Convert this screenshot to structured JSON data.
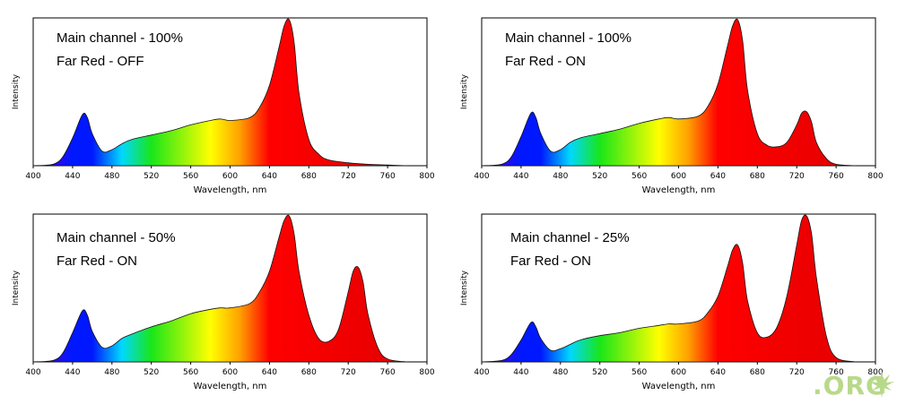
{
  "chart_data": [
    {
      "type": "area",
      "annotations": [
        "Main channel - 100%",
        "Far Red - OFF"
      ],
      "xlabel": "Wavelength, nm",
      "ylabel": "Intensity",
      "xlim": [
        400,
        800
      ],
      "xticks": [
        400,
        440,
        480,
        520,
        560,
        600,
        640,
        680,
        720,
        760,
        800
      ],
      "ylim": [
        0,
        1
      ],
      "grid": false,
      "x": [
        400,
        420,
        430,
        440,
        450,
        455,
        460,
        470,
        480,
        490,
        500,
        520,
        540,
        560,
        580,
        590,
        600,
        620,
        630,
        640,
        650,
        655,
        660,
        665,
        670,
        680,
        690,
        700,
        720,
        740,
        760,
        780
      ],
      "values": [
        0,
        0.01,
        0.06,
        0.19,
        0.35,
        0.33,
        0.22,
        0.1,
        0.11,
        0.15,
        0.18,
        0.21,
        0.24,
        0.28,
        0.31,
        0.32,
        0.31,
        0.33,
        0.4,
        0.55,
        0.82,
        0.96,
        1.0,
        0.85,
        0.5,
        0.18,
        0.08,
        0.04,
        0.02,
        0.01,
        0.005,
        0
      ]
    },
    {
      "type": "area",
      "annotations": [
        "Main channel - 100%",
        "Far Red - ON"
      ],
      "xlabel": "Wavelength, nm",
      "ylabel": "Intensity",
      "xlim": [
        400,
        800
      ],
      "xticks": [
        400,
        440,
        480,
        520,
        560,
        600,
        640,
        680,
        720,
        760,
        800
      ],
      "ylim": [
        0,
        1
      ],
      "grid": false,
      "x": [
        400,
        420,
        430,
        440,
        450,
        455,
        460,
        470,
        480,
        490,
        500,
        520,
        540,
        560,
        580,
        590,
        600,
        620,
        630,
        640,
        650,
        655,
        660,
        665,
        670,
        680,
        690,
        700,
        710,
        720,
        725,
        730,
        735,
        740,
        750,
        760,
        780
      ],
      "values": [
        0,
        0.01,
        0.06,
        0.2,
        0.36,
        0.33,
        0.22,
        0.1,
        0.11,
        0.16,
        0.19,
        0.22,
        0.25,
        0.29,
        0.32,
        0.33,
        0.32,
        0.34,
        0.41,
        0.56,
        0.83,
        0.96,
        1.0,
        0.86,
        0.52,
        0.22,
        0.14,
        0.13,
        0.16,
        0.28,
        0.36,
        0.37,
        0.3,
        0.16,
        0.05,
        0.01,
        0
      ]
    },
    {
      "type": "area",
      "annotations": [
        "Main channel - 50%",
        "Far Red - ON"
      ],
      "xlabel": "Wavelength, nm",
      "ylabel": "Intensity",
      "xlim": [
        400,
        800
      ],
      "xticks": [
        400,
        440,
        480,
        520,
        560,
        600,
        640,
        680,
        720,
        760,
        800
      ],
      "ylim": [
        0,
        1
      ],
      "grid": false,
      "x": [
        400,
        420,
        430,
        440,
        450,
        455,
        460,
        470,
        480,
        490,
        500,
        520,
        540,
        560,
        580,
        590,
        600,
        620,
        630,
        640,
        650,
        655,
        660,
        665,
        670,
        680,
        690,
        700,
        710,
        720,
        725,
        730,
        735,
        740,
        750,
        760,
        780
      ],
      "values": [
        0,
        0.01,
        0.06,
        0.2,
        0.35,
        0.32,
        0.21,
        0.1,
        0.11,
        0.16,
        0.19,
        0.24,
        0.28,
        0.33,
        0.36,
        0.37,
        0.37,
        0.4,
        0.48,
        0.62,
        0.86,
        0.97,
        1.0,
        0.88,
        0.62,
        0.32,
        0.16,
        0.14,
        0.22,
        0.48,
        0.62,
        0.65,
        0.55,
        0.33,
        0.1,
        0.02,
        0
      ]
    },
    {
      "type": "area",
      "annotations": [
        "Main channel - 25%",
        "Far Red - ON"
      ],
      "xlabel": "Wavelength, nm",
      "ylabel": "Intensity",
      "xlim": [
        400,
        800
      ],
      "xticks": [
        400,
        440,
        480,
        520,
        560,
        600,
        640,
        680,
        720,
        760,
        800
      ],
      "ylim": [
        0,
        1
      ],
      "grid": false,
      "x": [
        400,
        420,
        430,
        440,
        450,
        455,
        460,
        470,
        480,
        490,
        500,
        520,
        540,
        560,
        580,
        590,
        600,
        620,
        630,
        640,
        650,
        655,
        660,
        665,
        670,
        680,
        690,
        700,
        710,
        720,
        725,
        730,
        735,
        740,
        750,
        760,
        780
      ],
      "values": [
        0,
        0.01,
        0.05,
        0.15,
        0.27,
        0.24,
        0.16,
        0.08,
        0.09,
        0.12,
        0.15,
        0.18,
        0.2,
        0.23,
        0.25,
        0.26,
        0.26,
        0.28,
        0.34,
        0.45,
        0.66,
        0.77,
        0.8,
        0.68,
        0.42,
        0.2,
        0.17,
        0.24,
        0.45,
        0.8,
        0.97,
        1.0,
        0.88,
        0.58,
        0.18,
        0.03,
        0
      ]
    }
  ],
  "colors": {
    "violet": "#5a00c8",
    "blue": "#0018ff",
    "cyan": "#00d8ff",
    "green": "#19e619",
    "yellow": "#ffff00",
    "orange": "#ffa000",
    "red": "#ff0000",
    "far_red": "#e00000",
    "axis": "#000000"
  },
  "watermark": ".ORG",
  "watermark_icon": "cannabis-leaf-icon"
}
